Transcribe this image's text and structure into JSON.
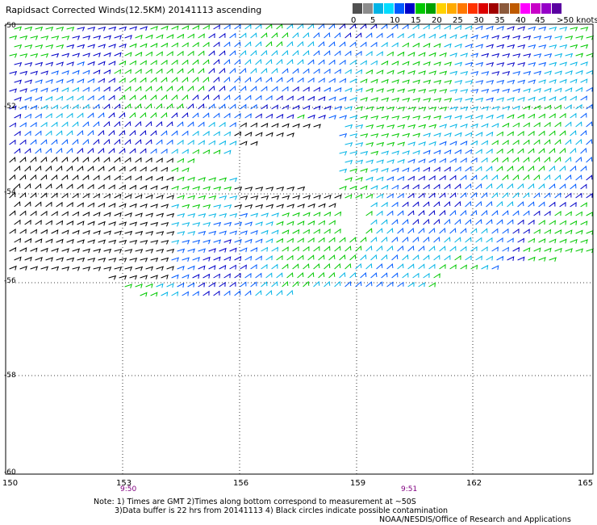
{
  "title": "Rapidsact Corrected Winds(12.5KM) 20141113 ascending",
  "scale": {
    "colors": [
      "#505050",
      "#8c8c8c",
      "#00b4e6",
      "#00dcff",
      "#005aff",
      "#0000c8",
      "#00c800",
      "#00a000",
      "#ffd200",
      "#ffaa00",
      "#ff7800",
      "#ff3200",
      "#dc0000",
      "#a00000",
      "#8c5a3c",
      "#be5a00",
      "#ff00ff",
      "#c800c8",
      "#9600c8",
      "#5a00a0"
    ],
    "ticks": [
      "0",
      "5",
      "10",
      "15",
      "20",
      "25",
      "30",
      "35",
      "40",
      "45",
      ">50 knots"
    ]
  },
  "map": {
    "lat_labels": [
      "-50",
      "-52",
      "-54",
      "-56",
      "-58",
      "-60"
    ],
    "lon_labels": [
      "150",
      "153",
      "156",
      "159",
      "162",
      "165"
    ],
    "time_labels": [
      "9:50",
      "9:51"
    ]
  },
  "notes": {
    "line1": "Note: 1) Times are GMT 2)Times along bottom correspond to measurement at ~50S",
    "line2": "3)Data buffer is 22 hrs from 20141113 4) Black circles indicate possible contamination",
    "credit": "NOAA/NESDIS/Office of Research and Applications"
  }
}
